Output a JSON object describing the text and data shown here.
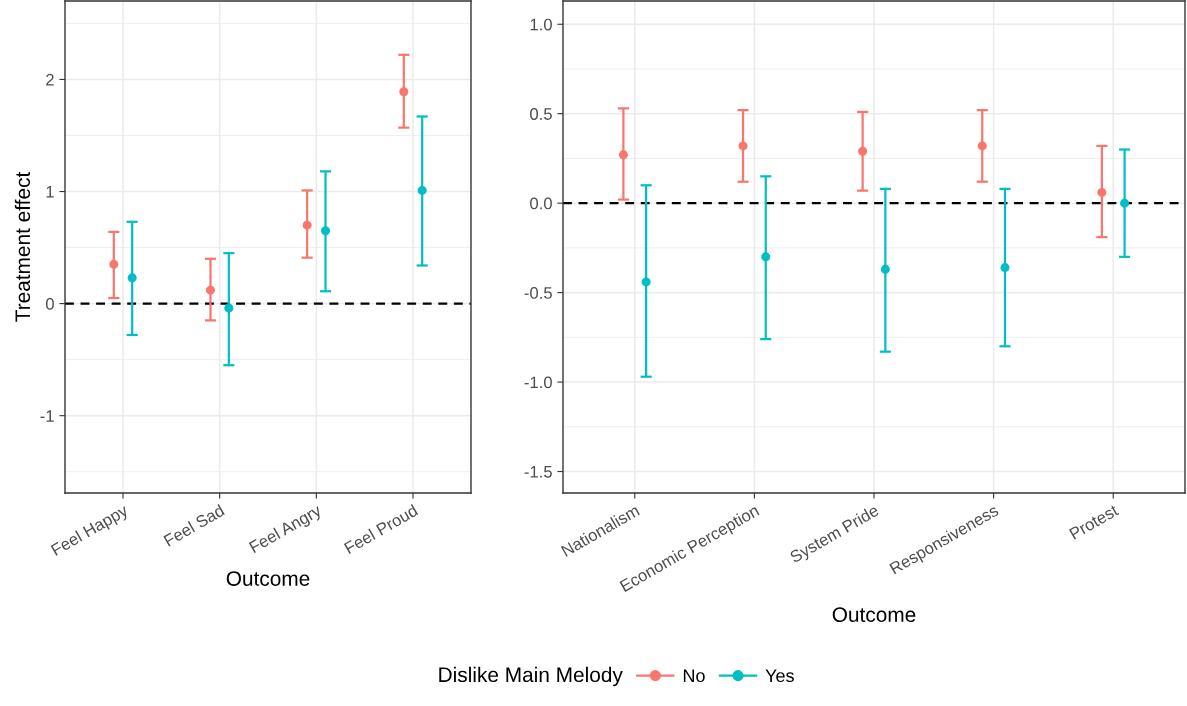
{
  "chart_data": [
    {
      "type": "scatter",
      "categories": [
        "Feel Happy",
        "Feel Sad",
        "Feel Angry",
        "Feel Proud"
      ],
      "xlabel": "Outcome",
      "ylabel": "Treatment effect",
      "ylim": [
        -1.69,
        2.7
      ],
      "yticks": [
        {
          "value": -1,
          "label": "-1"
        },
        0,
        1,
        2
      ],
      "grid": true,
      "marker": "circle",
      "legend": "bottom",
      "legend_title": "Dislike Main Melody",
      "ref_lines": [
        {
          "axis": "y",
          "value": 0,
          "color": "#000000",
          "line_style": "dashed"
        }
      ],
      "series": [
        {
          "name": "No",
          "color": "#f8766d",
          "values": [
            0.35,
            0.12,
            0.7,
            1.89
          ],
          "errors": [
            [
              0.05,
              0.64
            ],
            [
              -0.15,
              0.4
            ],
            [
              0.41,
              1.01
            ],
            [
              1.57,
              2.22
            ]
          ]
        },
        {
          "name": "Yes",
          "color": "#00bfc4",
          "values": [
            0.23,
            -0.04,
            0.65,
            1.01
          ],
          "errors": [
            [
              -0.28,
              0.73
            ],
            [
              -0.55,
              0.45
            ],
            [
              0.11,
              1.18
            ],
            [
              0.34,
              1.67
            ]
          ]
        }
      ]
    },
    {
      "type": "scatter",
      "categories": [
        "Nationalism",
        "Economic Perception",
        "System Pride",
        "Responsiveness",
        "Protest"
      ],
      "xlabel": "Outcome",
      "ylim": [
        -1.62,
        1.13
      ],
      "yticks": [
        {
          "value": -1.5,
          "label": "-1.5"
        },
        {
          "value": -1.0,
          "label": "-1.0"
        },
        {
          "value": -0.5,
          "label": "-0.5"
        },
        {
          "value": 0,
          "label": "0.0"
        },
        {
          "value": 0.5,
          "label": "0.5"
        },
        {
          "value": 1.0,
          "label": "1.0"
        }
      ],
      "grid": true,
      "marker": "circle",
      "ref_lines": [
        {
          "axis": "y",
          "value": 0,
          "color": "#000000",
          "line_style": "dashed"
        }
      ],
      "series": [
        {
          "color": "#f8766d",
          "values": [
            0.27,
            0.32,
            0.29,
            0.32,
            0.06
          ],
          "errors": [
            [
              0.02,
              0.53
            ],
            [
              0.12,
              0.52
            ],
            [
              0.07,
              0.51
            ],
            [
              0.12,
              0.52
            ],
            [
              -0.19,
              0.32
            ]
          ]
        },
        {
          "color": "#00bfc4",
          "values": [
            -0.44,
            -0.3,
            -0.37,
            -0.36,
            0.0
          ],
          "errors": [
            [
              -0.97,
              0.1
            ],
            [
              -0.76,
              0.15
            ],
            [
              -0.83,
              0.08
            ],
            [
              -0.8,
              0.08
            ],
            [
              -0.3,
              0.3
            ]
          ]
        }
      ]
    }
  ]
}
